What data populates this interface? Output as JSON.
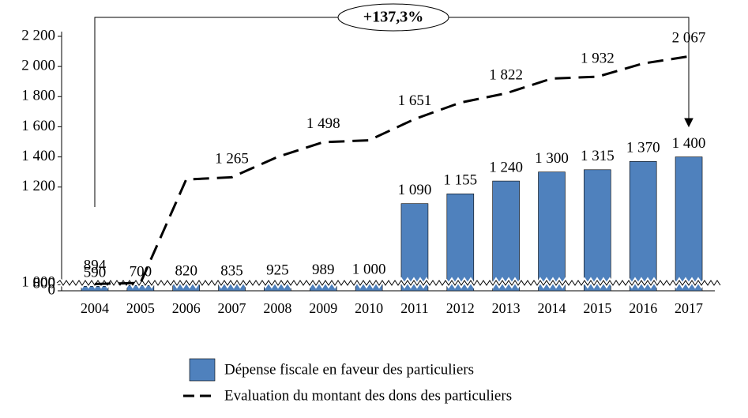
{
  "chart_data": {
    "type": "bar",
    "annotation": "+137,3%",
    "categories": [
      "2004",
      "2005",
      "2006",
      "2007",
      "2008",
      "2009",
      "2010",
      "2011",
      "2012",
      "2013",
      "2014",
      "2015",
      "2016",
      "2017"
    ],
    "series": [
      {
        "name": "Dépense fiscale en faveur des particuliers",
        "type": "bar",
        "color": "#4f81bd",
        "values": [
          590,
          700,
          820,
          835,
          925,
          989,
          1000,
          1090,
          1155,
          1240,
          1300,
          1315,
          1370,
          1400
        ],
        "value_labels": [
          "590",
          "700",
          "820",
          "835",
          "925",
          "989",
          "1 000",
          "1 090",
          "1 155",
          "1 240",
          "1 300",
          "1 315",
          "1 370",
          "1 400"
        ]
      },
      {
        "name": "Evaluation du montant des dons des particuliers",
        "type": "line",
        "color": "#000000",
        "values": [
          894,
          1030,
          1250,
          1265,
          1400,
          1498,
          1510,
          1651,
          1760,
          1822,
          1920,
          1932,
          2020,
          2067
        ],
        "value_labels": [
          "894",
          null,
          null,
          "1 265",
          null,
          "1 498",
          null,
          "1 651",
          null,
          "1 822",
          null,
          "1 932",
          null,
          "2 067"
        ]
      }
    ],
    "ylim": [
      0,
      2200
    ],
    "yticks": [
      0,
      800,
      {
        "value": 1000,
        "label": "1 000"
      },
      {
        "value": 1200,
        "label": "1 200"
      },
      {
        "value": 1400,
        "label": "1 400"
      },
      {
        "value": 1600,
        "label": "1 600"
      },
      {
        "value": 1800,
        "label": "1 800"
      },
      {
        "value": 2000,
        "label": "2 000"
      },
      {
        "value": 2200,
        "label": "2 200"
      }
    ],
    "legend": "bottom"
  }
}
